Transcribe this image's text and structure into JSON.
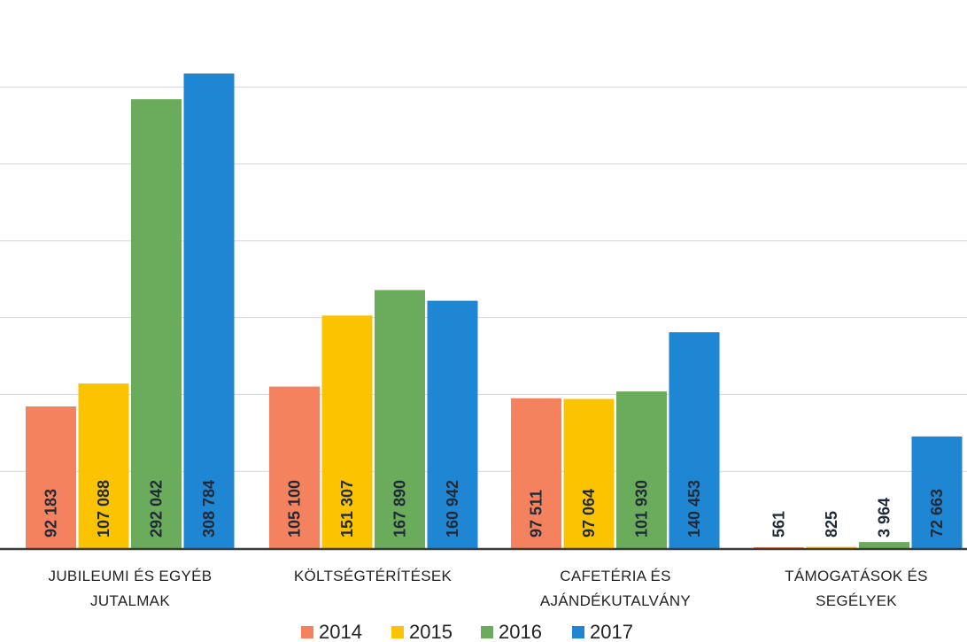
{
  "chart_data": {
    "type": "bar",
    "categories": [
      [
        "JUBILEUMI ÉS EGYÉB",
        "JUTALMAK"
      ],
      [
        "KÖLTSÉGTÉRÍTÉSEK"
      ],
      [
        "CAFETÉRIA ÉS",
        "AJÁNDÉKUTALVÁNY"
      ],
      [
        "TÁMOGATÁSOK ÉS",
        "SEGÉLYEK"
      ]
    ],
    "series": [
      {
        "name": "2014",
        "color": "#f4825f",
        "values": [
          92183,
          105100,
          97511,
          561
        ],
        "labels": [
          "92 183",
          "105 100",
          "97 511",
          "561"
        ]
      },
      {
        "name": "2015",
        "color": "#fcc300",
        "values": [
          107088,
          151307,
          97064,
          825
        ],
        "labels": [
          "107 088",
          "151 307",
          "97 064",
          "825"
        ]
      },
      {
        "name": "2016",
        "color": "#6aab5c",
        "values": [
          292042,
          167890,
          101930,
          3964
        ],
        "labels": [
          "292 042",
          "167 890",
          "101 930",
          "3 964"
        ]
      },
      {
        "name": "2017",
        "color": "#1f86d4",
        "values": [
          308784,
          160942,
          140453,
          72663
        ],
        "labels": [
          "308 784",
          "160 942",
          "140 453",
          "72 663"
        ]
      }
    ],
    "ylim": [
      0,
      350000
    ],
    "grid": true,
    "legend": "bottom",
    "title": "",
    "xlabel": "",
    "ylabel": ""
  }
}
